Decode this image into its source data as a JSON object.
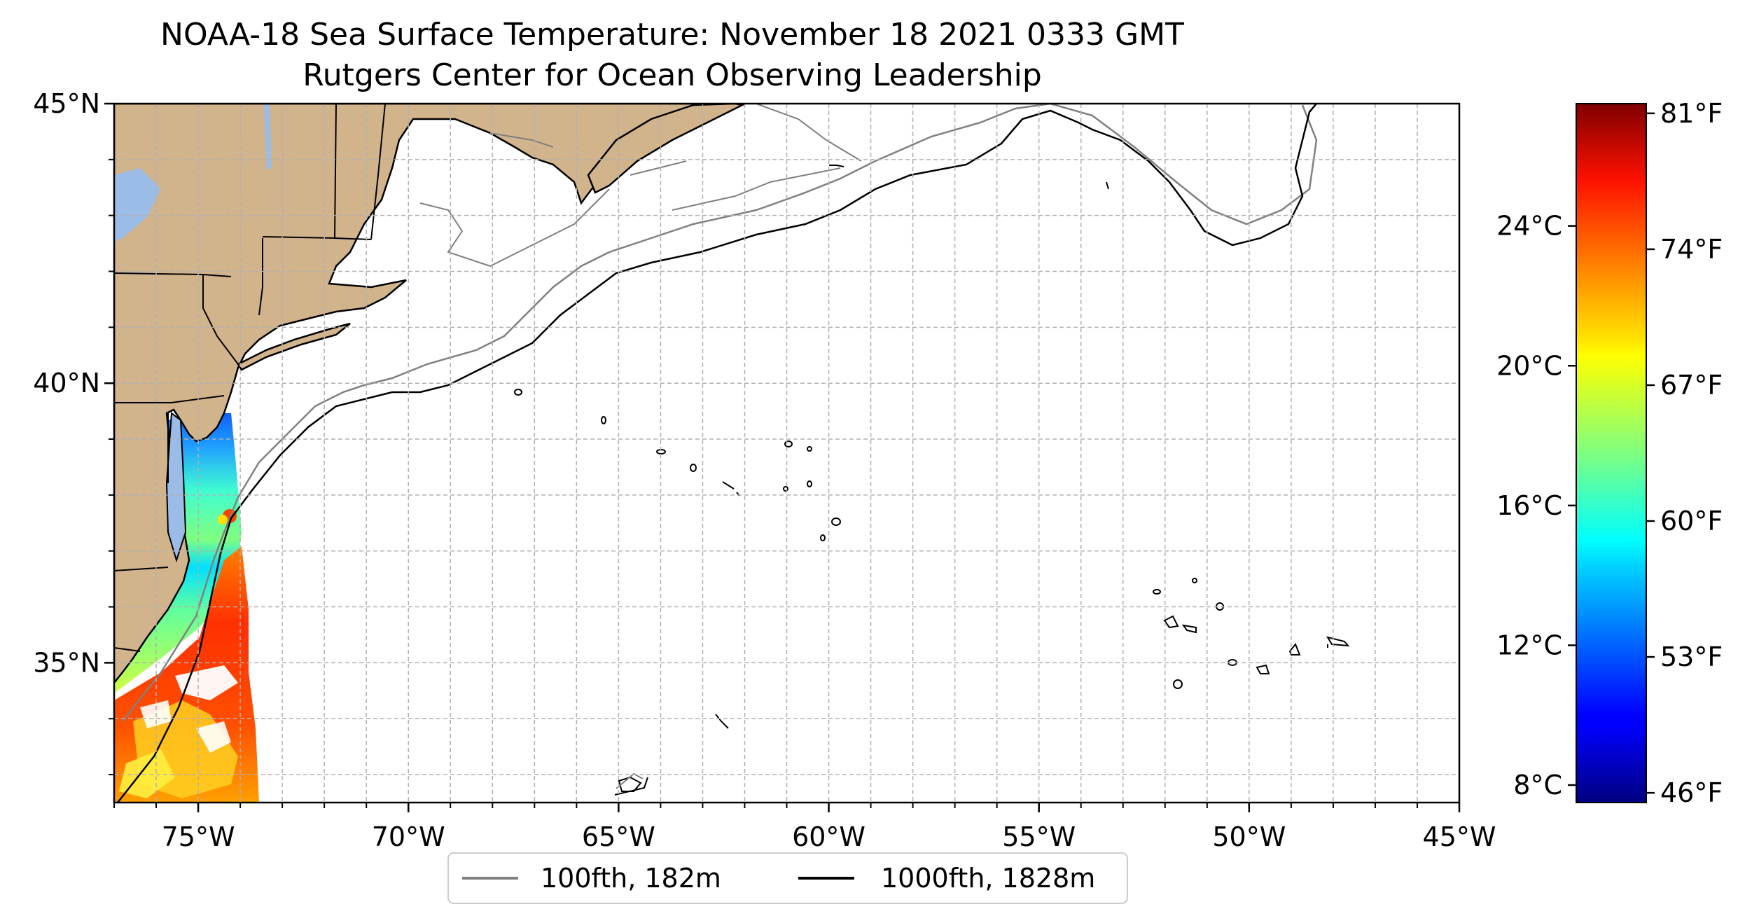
{
  "title": "NOAA-18 Sea Surface Temperature: November 18 2021 0333 GMT",
  "subtitle": "Rutgers Center for Ocean Observing Leadership",
  "map": {
    "lon_range": [
      -77,
      -45
    ],
    "lat_range": [
      32.5,
      45
    ],
    "lon_ticks": [
      {
        "lon": -75,
        "label": "75°W"
      },
      {
        "lon": -70,
        "label": "70°W"
      },
      {
        "lon": -65,
        "label": "65°W"
      },
      {
        "lon": -60,
        "label": "60°W"
      },
      {
        "lon": -55,
        "label": "55°W"
      },
      {
        "lon": -50,
        "label": "50°W"
      },
      {
        "lon": -45,
        "label": "45°W"
      }
    ],
    "lat_ticks": [
      {
        "lat": 45,
        "label": "45°N"
      },
      {
        "lat": 40,
        "label": "40°N"
      },
      {
        "lat": 35,
        "label": "35°N"
      }
    ],
    "grid": true,
    "land_color": "#d2b48c",
    "water_body_color": "#9bbce6"
  },
  "legend": {
    "placement": "below-map",
    "entries": [
      {
        "label": "100fth, 182m",
        "color": "#808080"
      },
      {
        "label": "1000fth, 1828m",
        "color": "#000000"
      }
    ]
  },
  "colorbar": {
    "colormap": "jet",
    "celsius_range": [
      7.5,
      27.5
    ],
    "celsius_ticks": [
      {
        "value": 24,
        "label": "24°C"
      },
      {
        "value": 20,
        "label": "20°C"
      },
      {
        "value": 16,
        "label": "16°C"
      },
      {
        "value": 12,
        "label": "12°C"
      },
      {
        "value": 8,
        "label": "8°C"
      }
    ],
    "fahrenheit_ticks": [
      {
        "value": 81,
        "label": "81°F"
      },
      {
        "value": 74,
        "label": "74°F"
      },
      {
        "value": 67,
        "label": "67°F"
      },
      {
        "value": 60,
        "label": "60°F"
      },
      {
        "value": 53,
        "label": "53°F"
      },
      {
        "value": 46,
        "label": "46°F"
      }
    ]
  }
}
